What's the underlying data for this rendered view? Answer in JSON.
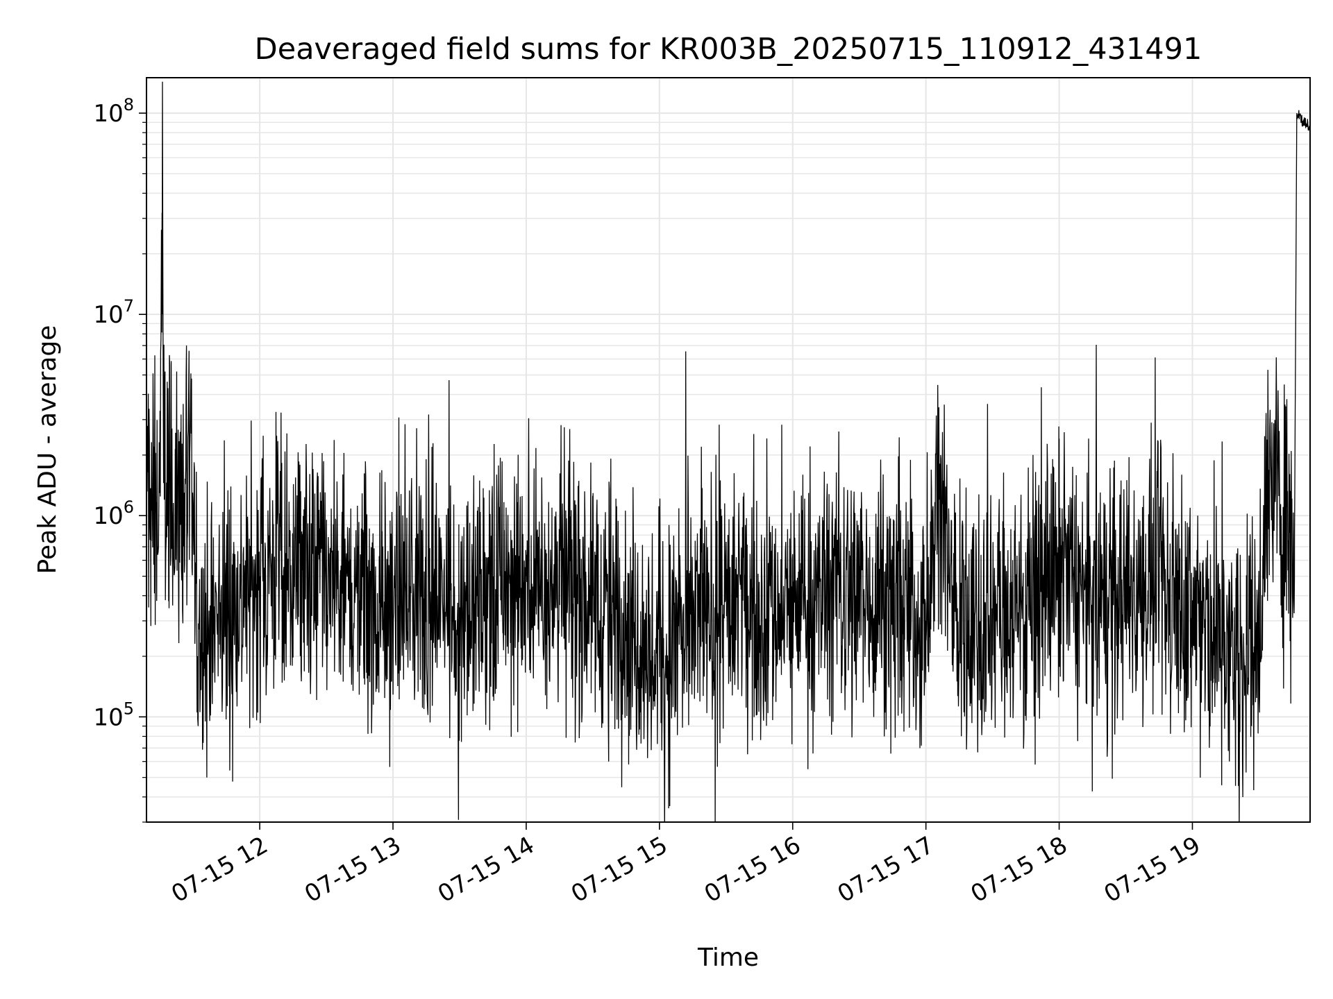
{
  "chart_data": {
    "type": "line",
    "title": "Deaveraged field sums for KR003B_20250715_110912_431491",
    "xlabel": "Time",
    "ylabel": "Peak ADU - average",
    "yscale": "log",
    "grid": true,
    "line_color": "#000000",
    "grid_color": "#e6e6e6",
    "xlim": [
      "2025-07-15T11:09",
      "2025-07-15T19:53"
    ],
    "ylim": [
      30000,
      150000000
    ],
    "x_ticks": [
      {
        "value": "2025-07-15T12:00",
        "label": "07-15 12"
      },
      {
        "value": "2025-07-15T13:00",
        "label": "07-15 13"
      },
      {
        "value": "2025-07-15T14:00",
        "label": "07-15 14"
      },
      {
        "value": "2025-07-15T15:00",
        "label": "07-15 15"
      },
      {
        "value": "2025-07-15T16:00",
        "label": "07-15 16"
      },
      {
        "value": "2025-07-15T17:00",
        "label": "07-15 17"
      },
      {
        "value": "2025-07-15T18:00",
        "label": "07-15 18"
      },
      {
        "value": "2025-07-15T19:00",
        "label": "07-15 19"
      }
    ],
    "y_ticks": [
      {
        "value": 100000,
        "base": "10",
        "exp": "5"
      },
      {
        "value": 1000000,
        "base": "10",
        "exp": "6"
      },
      {
        "value": 10000000,
        "base": "10",
        "exp": "7"
      },
      {
        "value": 100000000,
        "base": "10",
        "exp": "8"
      }
    ],
    "series": [
      {
        "x": [
          "2025-07-15T11:09",
          "2025-07-15T11:11",
          "2025-07-15T11:13",
          "2025-07-15T11:15",
          "2025-07-15T11:16",
          "2025-07-15T11:17",
          "2025-07-15T11:19",
          "2025-07-15T11:22",
          "2025-07-15T11:26",
          "2025-07-15T11:30",
          "2025-07-15T11:31",
          "2025-07-15T11:32",
          "2025-07-15T11:35",
          "2025-07-15T11:42",
          "2025-07-15T11:50",
          "2025-07-15T12:00",
          "2025-07-15T12:10",
          "2025-07-15T12:25",
          "2025-07-15T12:40",
          "2025-07-15T12:55",
          "2025-07-15T13:05",
          "2025-07-15T13:20",
          "2025-07-15T13:30",
          "2025-07-15T13:35",
          "2025-07-15T13:50",
          "2025-07-15T14:00",
          "2025-07-15T14:15",
          "2025-07-15T14:30",
          "2025-07-15T14:45",
          "2025-07-15T14:57",
          "2025-07-15T15:10",
          "2025-07-15T15:25",
          "2025-07-15T15:40",
          "2025-07-15T15:55",
          "2025-07-15T16:10",
          "2025-07-15T16:20",
          "2025-07-15T16:35",
          "2025-07-15T16:50",
          "2025-07-15T17:00",
          "2025-07-15T17:06",
          "2025-07-15T17:12",
          "2025-07-15T17:17",
          "2025-07-15T17:30",
          "2025-07-15T17:45",
          "2025-07-15T18:00",
          "2025-07-15T18:15",
          "2025-07-15T18:30",
          "2025-07-15T18:45",
          "2025-07-15T19:00",
          "2025-07-15T19:10",
          "2025-07-15T19:20",
          "2025-07-15T19:30",
          "2025-07-15T19:33",
          "2025-07-15T19:38",
          "2025-07-15T19:40",
          "2025-07-15T19:44",
          "2025-07-15T19:46",
          "2025-07-15T19:47",
          "2025-07-15T19:50",
          "2025-07-15T19:53"
        ],
        "y": [
          2000000,
          800000,
          1200000,
          1500000,
          32000000,
          1200000,
          1800000,
          1100000,
          1300000,
          1000000,
          400000,
          200000,
          250000,
          300000,
          400000,
          500000,
          600000,
          500000,
          400000,
          350000,
          450000,
          400000,
          350000,
          300000,
          450000,
          500000,
          450000,
          400000,
          300000,
          200000,
          250000,
          350000,
          400000,
          350000,
          400000,
          450000,
          400000,
          350000,
          300000,
          1200000,
          400000,
          250000,
          300000,
          400000,
          500000,
          350000,
          400000,
          450000,
          300000,
          250000,
          200000,
          250000,
          1300000,
          1600000,
          1000000,
          900000,
          800000,
          100000000,
          90000000,
          85000000
        ],
        "noise": 0.55
      }
    ]
  }
}
